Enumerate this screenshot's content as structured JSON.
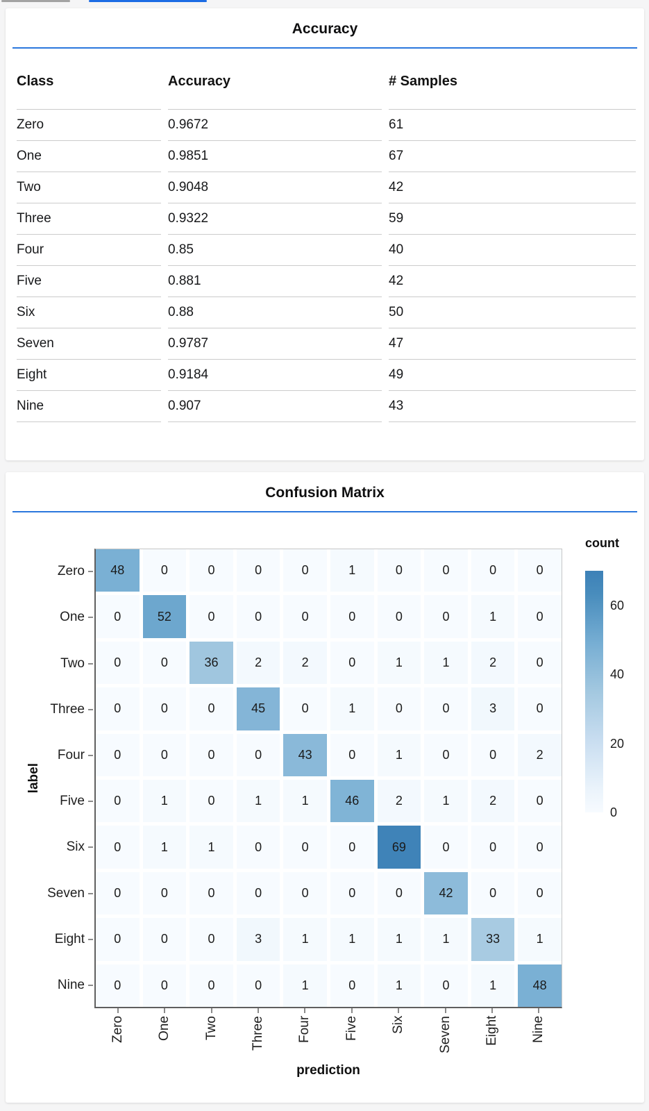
{
  "theme": {
    "accent_blue": "#2a77dd",
    "tab_active_blue": "#1c6ce4",
    "tab_inactive_gray": "#a3a3a3",
    "heatmap_low": "#f7fbff",
    "heatmap_high": "#3d81b7"
  },
  "accuracy_card": {
    "title": "Accuracy"
  },
  "confusion_card": {
    "title": "Confusion Matrix"
  },
  "chart_data": [
    {
      "type": "table",
      "title": "Accuracy",
      "columns": [
        "Class",
        "Accuracy",
        "# Samples"
      ],
      "rows": [
        [
          "Zero",
          "0.9672",
          "61"
        ],
        [
          "One",
          "0.9851",
          "67"
        ],
        [
          "Two",
          "0.9048",
          "42"
        ],
        [
          "Three",
          "0.9322",
          "59"
        ],
        [
          "Four",
          "0.85",
          "40"
        ],
        [
          "Five",
          "0.881",
          "42"
        ],
        [
          "Six",
          "0.88",
          "50"
        ],
        [
          "Seven",
          "0.9787",
          "47"
        ],
        [
          "Eight",
          "0.9184",
          "49"
        ],
        [
          "Nine",
          "0.907",
          "43"
        ]
      ]
    },
    {
      "type": "heatmap",
      "title": "Confusion Matrix",
      "xlabel": "prediction",
      "ylabel": "label",
      "x_categories": [
        "Zero",
        "One",
        "Two",
        "Three",
        "Four",
        "Five",
        "Six",
        "Seven",
        "Eight",
        "Nine"
      ],
      "y_categories": [
        "Zero",
        "One",
        "Two",
        "Three",
        "Four",
        "Five",
        "Six",
        "Seven",
        "Eight",
        "Nine"
      ],
      "matrix": [
        [
          48,
          0,
          0,
          0,
          0,
          1,
          0,
          0,
          0,
          0
        ],
        [
          0,
          52,
          0,
          0,
          0,
          0,
          0,
          0,
          1,
          0
        ],
        [
          0,
          0,
          36,
          2,
          2,
          0,
          1,
          1,
          2,
          0
        ],
        [
          0,
          0,
          0,
          45,
          0,
          1,
          0,
          0,
          3,
          0
        ],
        [
          0,
          0,
          0,
          0,
          43,
          0,
          1,
          0,
          0,
          2
        ],
        [
          0,
          1,
          0,
          1,
          1,
          46,
          2,
          1,
          2,
          0
        ],
        [
          0,
          1,
          1,
          0,
          0,
          0,
          69,
          0,
          0,
          0
        ],
        [
          0,
          0,
          0,
          0,
          0,
          0,
          0,
          42,
          0,
          0
        ],
        [
          0,
          0,
          0,
          3,
          1,
          1,
          1,
          1,
          33,
          1
        ],
        [
          0,
          0,
          0,
          0,
          1,
          0,
          1,
          0,
          1,
          48
        ]
      ],
      "legend": {
        "title": "count",
        "ticks": [
          60,
          40,
          20,
          0
        ],
        "domain": [
          0,
          70
        ]
      }
    }
  ]
}
